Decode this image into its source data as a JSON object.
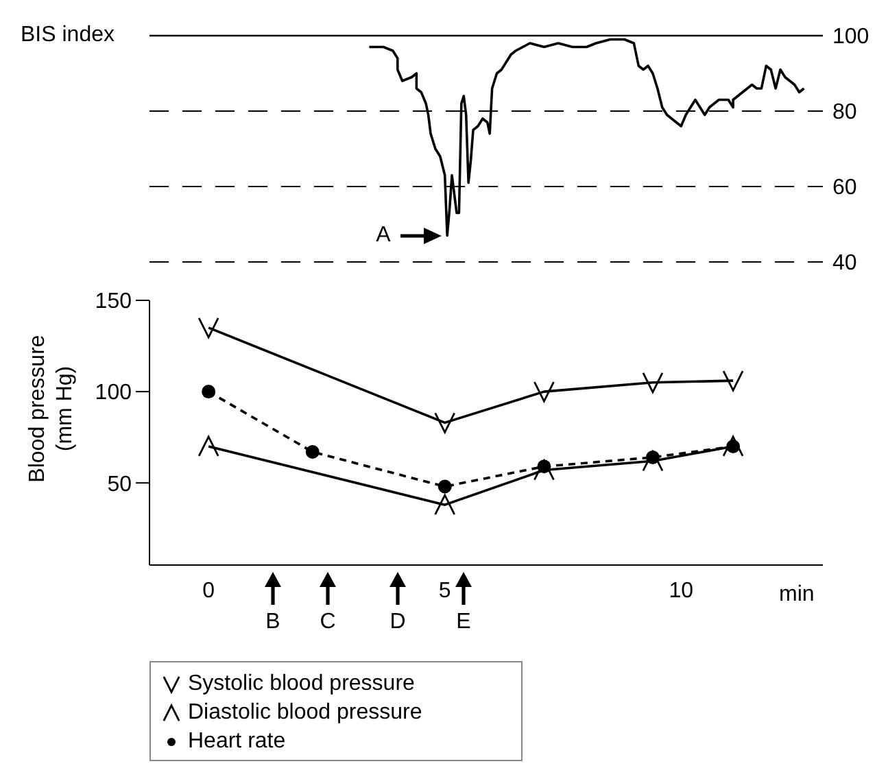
{
  "chart_data": [
    {
      "type": "line",
      "ylabel": "BIS index",
      "xlim": [
        -1.25,
        13
      ],
      "ylim": [
        40,
        100
      ],
      "yticks": [
        40,
        60,
        80,
        100
      ],
      "grid": "y",
      "tick_labels": "y",
      "ref_lines": [
        {
          "axis": "y",
          "value": 100,
          "line_style": "solid",
          "color": "#000000"
        }
      ],
      "annotations": [
        {
          "text": "A",
          "x": 5.05,
          "y": 47
        }
      ],
      "x": [
        3.4,
        3.7,
        3.9,
        4.0,
        4.0,
        4.1,
        4.3,
        4.4,
        4.4,
        4.5,
        4.6,
        4.65,
        4.7,
        4.8,
        4.9,
        5.0,
        5.05,
        5.1,
        5.15,
        5.25,
        5.3,
        5.35,
        5.4,
        5.45,
        5.5,
        5.55,
        5.6,
        5.7,
        5.8,
        5.9,
        5.95,
        6.0,
        6.1,
        6.2,
        6.4,
        6.5,
        6.8,
        7.1,
        7.4,
        7.7,
        8.0,
        8.2,
        8.5,
        8.8,
        9.0,
        9.1,
        9.2,
        9.3,
        9.4,
        9.5,
        9.6,
        9.7,
        9.9,
        10.0,
        10.1,
        10.3,
        10.4,
        10.5,
        10.6,
        10.8,
        11.0,
        11.1,
        11.1,
        11.3,
        11.5,
        11.6,
        11.7,
        11.8,
        11.9,
        12.0,
        12.1,
        12.2,
        12.4,
        12.5,
        12.6
      ],
      "series": [
        {
          "color": "#000000",
          "values": [
            97,
            97,
            96,
            94,
            91,
            88,
            89,
            90,
            86,
            85,
            82,
            79,
            74,
            70,
            68,
            63,
            47,
            54,
            63,
            53,
            53,
            82,
            84,
            79,
            61,
            67,
            75,
            76,
            78,
            77,
            74,
            86,
            90,
            91,
            95,
            96,
            98,
            97,
            98,
            97,
            97,
            98,
            99,
            99,
            98,
            92,
            91,
            92,
            90,
            86,
            81,
            79,
            77,
            76,
            79,
            83,
            81,
            79,
            81,
            83,
            83,
            81,
            83,
            85,
            87,
            86,
            86,
            92,
            91,
            86,
            91,
            89,
            87,
            85,
            86
          ]
        }
      ]
    },
    {
      "type": "line",
      "xlabel": "min",
      "ylabel": "Blood pressure (mm Hg)",
      "xlim": [
        -1.25,
        13
      ],
      "xticks": [
        0,
        5,
        10
      ],
      "ylim": [
        5,
        150
      ],
      "yticks": [
        50,
        100,
        150
      ],
      "legend": "bottom left",
      "annotations": [
        "B",
        "C",
        "D",
        "E"
      ],
      "series": [
        {
          "name": "Systolic blood pressure",
          "color": "#000000",
          "marker": "cross",
          "line_style": "solid",
          "x": [
            0,
            5,
            7.1,
            9.4,
            11.1
          ],
          "values": [
            135,
            83,
            100,
            105,
            106
          ]
        },
        {
          "name": "Diastolic blood pressure",
          "color": "#000000",
          "marker": "cross",
          "line_style": "solid",
          "x": [
            0,
            5,
            7.1,
            9.4,
            11.1
          ],
          "values": [
            70,
            38,
            57,
            62,
            70
          ]
        },
        {
          "name": "Heart rate",
          "color": "#000000",
          "marker": "circle",
          "line_style": "dashed",
          "x": [
            0,
            2.2,
            5,
            7.1,
            9.4,
            11.1
          ],
          "values": [
            100,
            67,
            48,
            59,
            64,
            70
          ]
        }
      ]
    }
  ]
}
